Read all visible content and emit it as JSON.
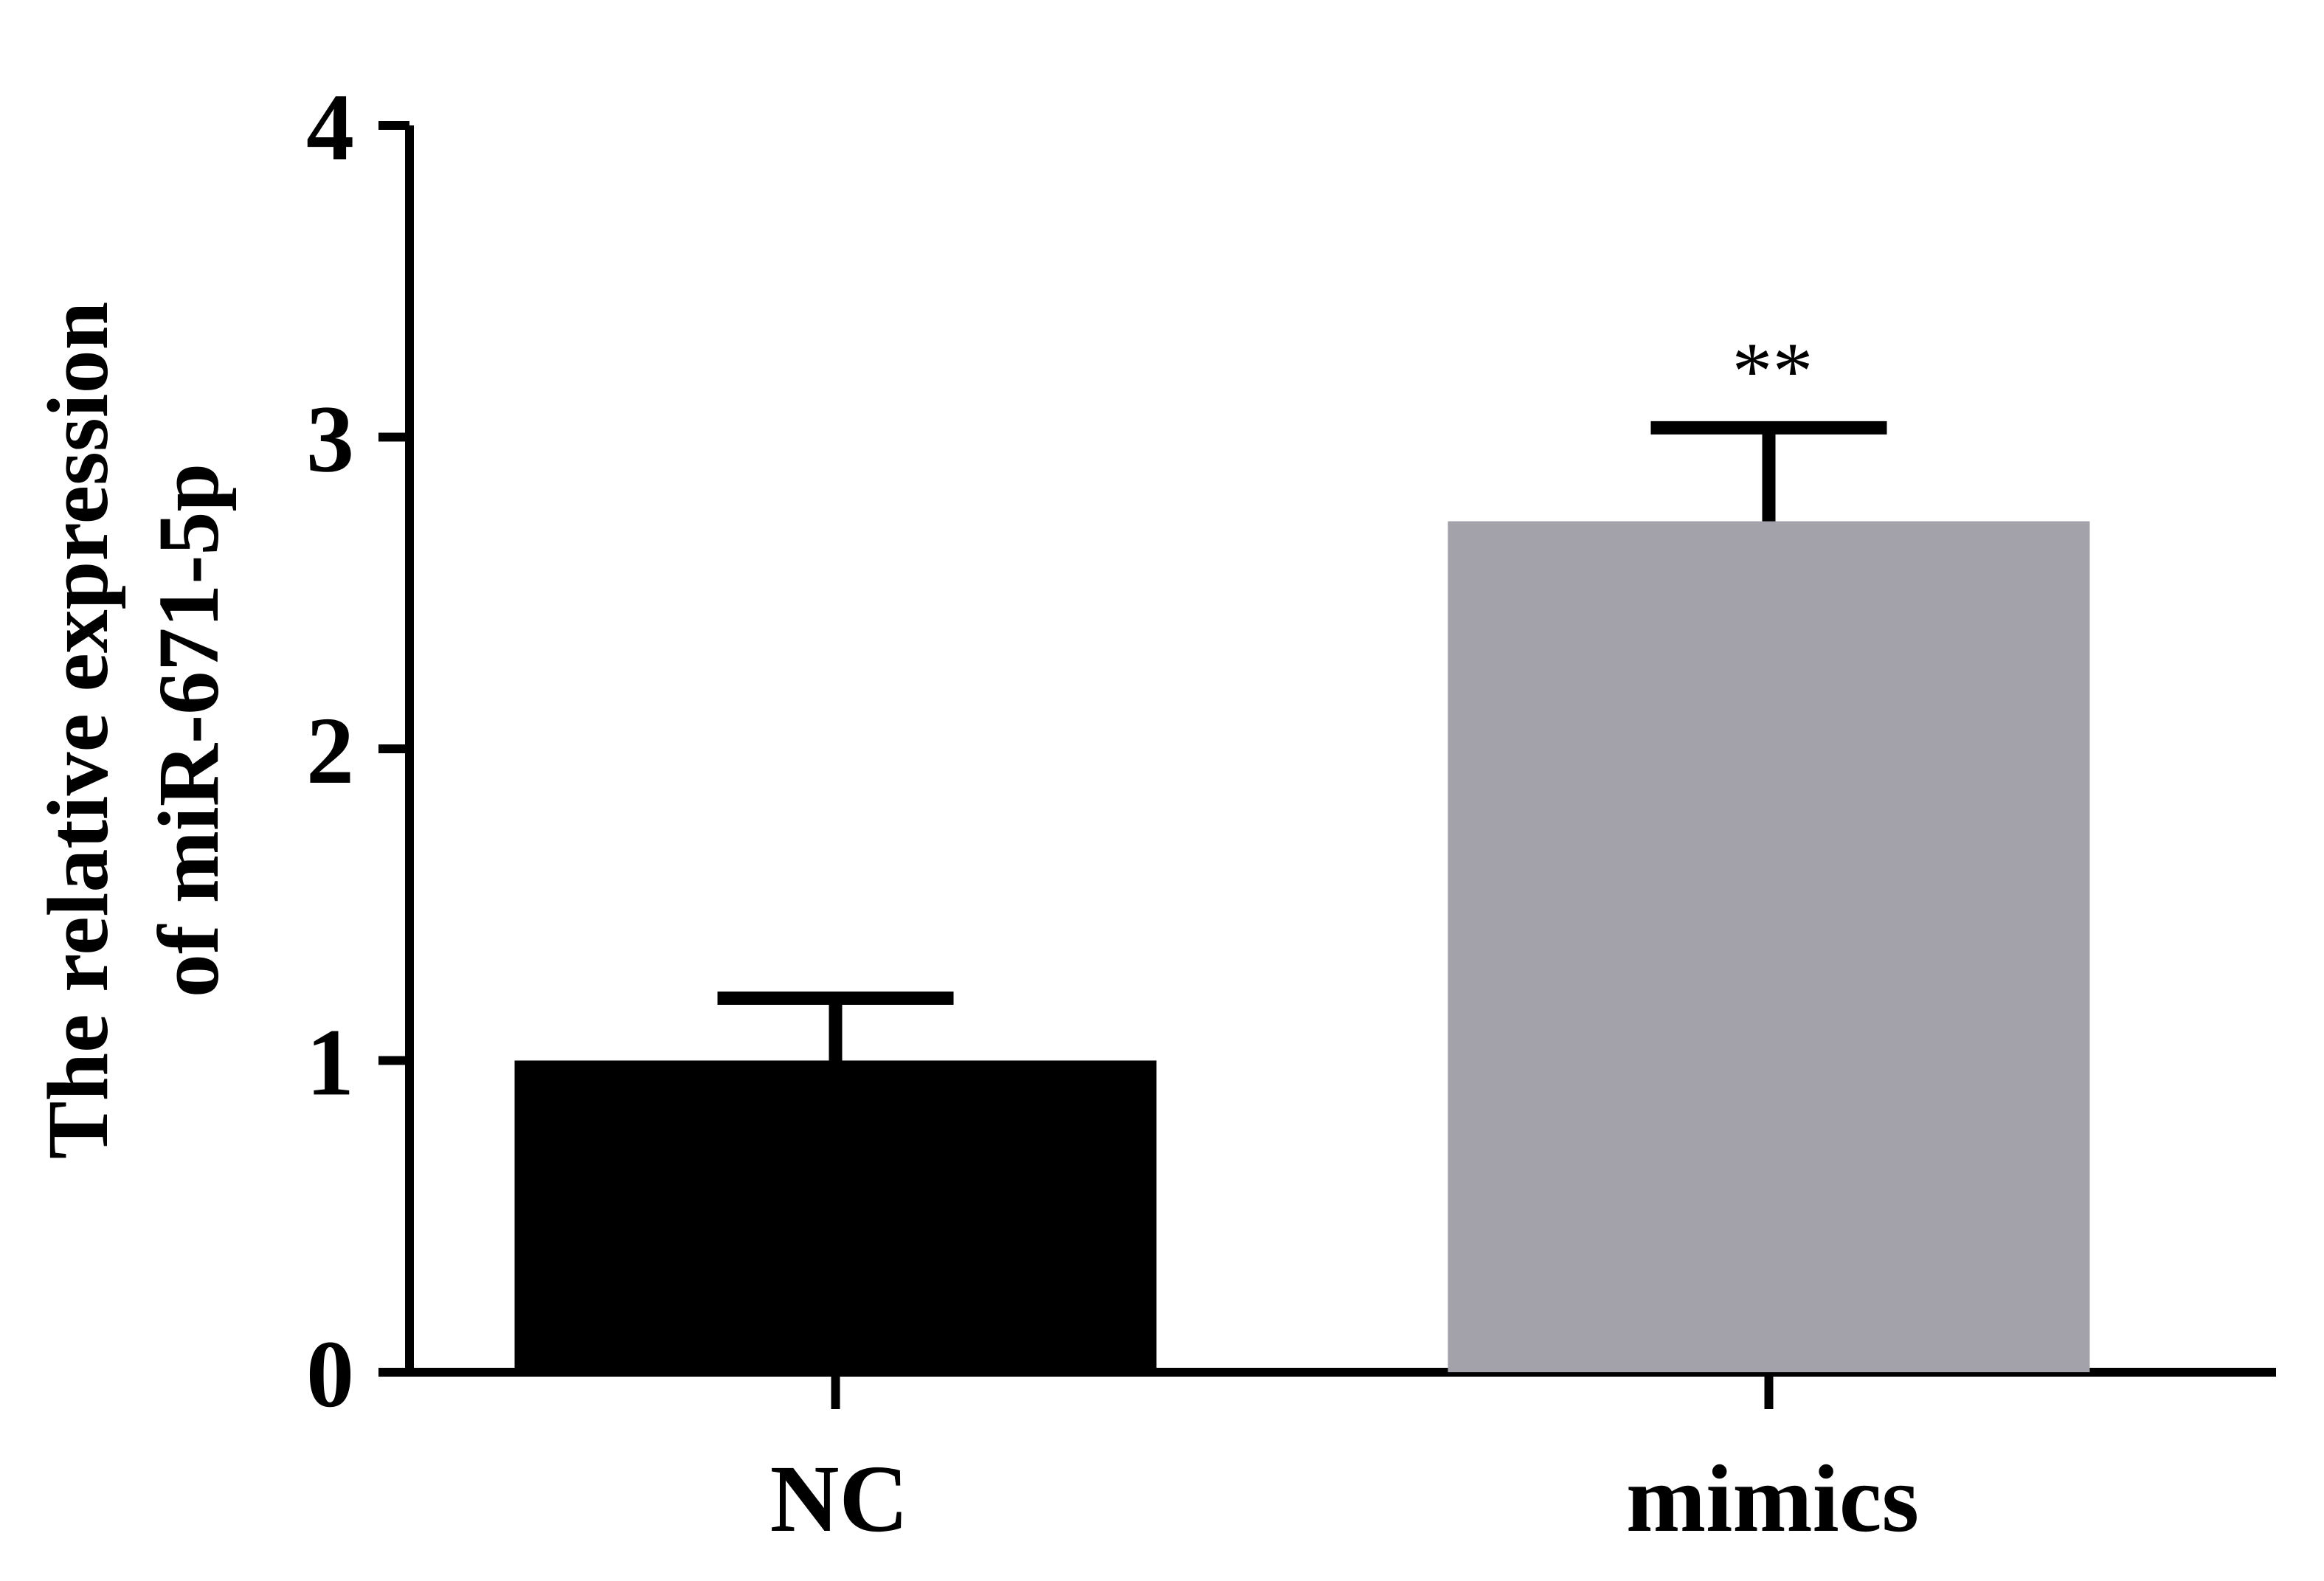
{
  "chart_data": {
    "type": "bar",
    "categories": [
      "NC",
      "mimics"
    ],
    "values": [
      1.0,
      2.73
    ],
    "errors": [
      0.2,
      0.3
    ],
    "colors": [
      "#000000",
      "#a3a1aa"
    ],
    "ylim": [
      0,
      4
    ],
    "yticks": [
      0,
      1,
      2,
      3,
      4
    ],
    "ylabel_lines": [
      "The relative expression",
      "of miR-671-5p"
    ],
    "xlabel": "",
    "title": "",
    "annotations": [
      "",
      "**"
    ],
    "grid": false,
    "legend": "none"
  }
}
